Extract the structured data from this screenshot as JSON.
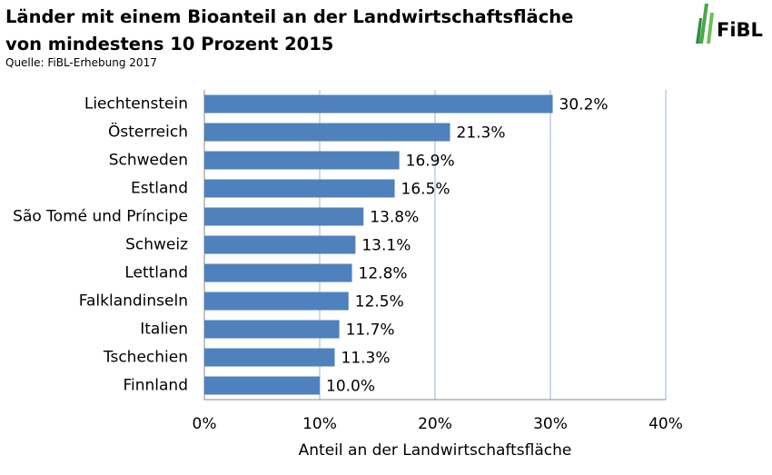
{
  "chart_data": {
    "type": "hbar",
    "title": "Länder mit einem Bioanteil  an der Landwirtschaftsfläche von mindestens 10 Prozent 2015",
    "subtitle": "Quelle: FiBL-Erhebung 2017",
    "x_label": "Anteil an der Landwirtschaftsfläche",
    "categories": [
      "Liechtenstein",
      "Österreich",
      "Schweden",
      "Estland",
      "São Tomé und Príncipe",
      "Schweiz",
      "Lettland",
      "Falklandinseln",
      "Italien",
      "Tschechien",
      "Finnland"
    ],
    "values": [
      30.2,
      21.3,
      16.9,
      16.5,
      13.8,
      13.1,
      12.8,
      12.5,
      11.7,
      11.3,
      10.0
    ],
    "value_labels": [
      "30.2%",
      "21.3%",
      "16.9%",
      "16.5%",
      "13.8%",
      "13.1%",
      "12.8%",
      "12.5%",
      "11.7%",
      "11.3%",
      "10.0%"
    ],
    "color": "#4f81bd",
    "xlim": [
      0,
      40
    ],
    "xticks": [
      {
        "value": 0,
        "label": "0%"
      },
      {
        "value": 10,
        "label": "10%"
      },
      {
        "value": 20,
        "label": "20%"
      },
      {
        "value": 30,
        "label": "30%"
      },
      {
        "value": 40,
        "label": "40%"
      }
    ],
    "grid": true
  },
  "logo": {
    "text": "FiBL"
  }
}
